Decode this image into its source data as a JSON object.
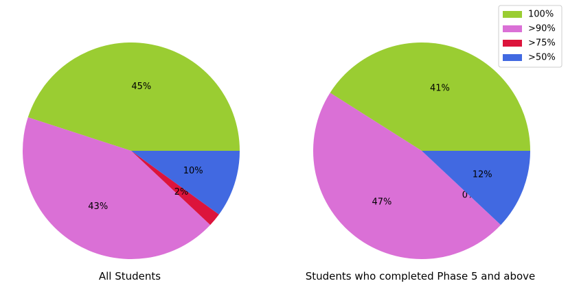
{
  "legend": {
    "location": "top-right",
    "entries": [
      {
        "label": "100%",
        "color": "#9ACD32"
      },
      {
        "label": ">90%",
        "color": "#DA70D6"
      },
      {
        "label": ">75%",
        "color": "#DC143C"
      },
      {
        "label": ">50%",
        "color": "#4169E1"
      }
    ]
  },
  "chart_data": [
    {
      "type": "pie",
      "title": "All Students",
      "categories": [
        "100%",
        ">90%",
        ">75%",
        ">50%"
      ],
      "values": [
        45,
        43,
        2,
        10
      ],
      "labels": [
        "45%",
        "43%",
        "2%",
        "10%"
      ],
      "colors": [
        "#9ACD32",
        "#DA70D6",
        "#DC143C",
        "#4169E1"
      ]
    },
    {
      "type": "pie",
      "title": "Students who completed Phase 5 and above",
      "categories": [
        "100%",
        ">90%",
        ">75%",
        ">50%"
      ],
      "values": [
        41,
        47,
        0,
        12
      ],
      "labels": [
        "41%",
        "47%",
        "0%",
        "12%"
      ],
      "colors": [
        "#9ACD32",
        "#DA70D6",
        "#DC143C",
        "#4169E1"
      ]
    }
  ]
}
